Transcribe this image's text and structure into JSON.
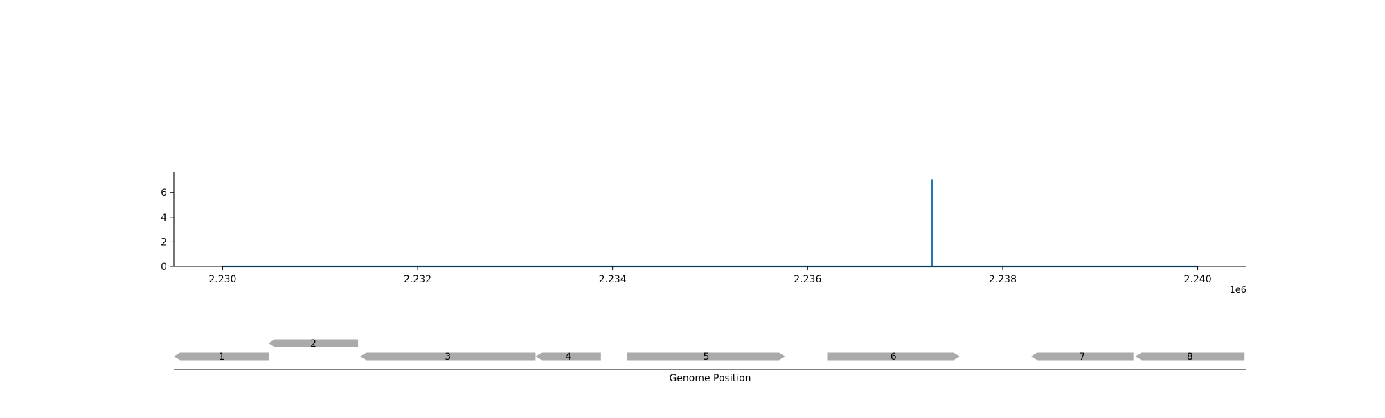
{
  "chart_data": [
    {
      "type": "line",
      "xlabel": "",
      "ylabel": "",
      "x_offset_label": "1e6",
      "xlim": [
        2229500,
        2240500
      ],
      "ylim": [
        0,
        7.7
      ],
      "xticks": [
        2230000,
        2232000,
        2234000,
        2236000,
        2238000,
        2240000
      ],
      "xtick_labels": [
        "2.230",
        "2.232",
        "2.234",
        "2.236",
        "2.238",
        "2.240"
      ],
      "yticks": [
        0,
        2,
        4,
        6
      ],
      "ytick_labels": [
        "0",
        "2",
        "4",
        "6"
      ],
      "grid": false,
      "series": [
        {
          "color": "#1f77b4",
          "x": [
            2230000,
            2237270,
            2237270,
            2237280,
            2237280,
            2240000
          ],
          "y": [
            0,
            0,
            7,
            7,
            0,
            0
          ]
        }
      ]
    },
    {
      "type": "gene_track",
      "xlabel": "Genome Position",
      "xlim": [
        2229500,
        2240500
      ],
      "feature_color": "#aaaaaa",
      "features": [
        {
          "label": "1",
          "start": 2229500,
          "end": 2230480,
          "strand": -1,
          "level": 0
        },
        {
          "label": "2",
          "start": 2230470,
          "end": 2231390,
          "strand": -1,
          "level": 1
        },
        {
          "label": "3",
          "start": 2231410,
          "end": 2233210,
          "strand": -1,
          "level": 0
        },
        {
          "label": "4",
          "start": 2233210,
          "end": 2233880,
          "strand": -1,
          "level": 0
        },
        {
          "label": "5",
          "start": 2234150,
          "end": 2235770,
          "strand": 1,
          "level": 0
        },
        {
          "label": "6",
          "start": 2236200,
          "end": 2237560,
          "strand": 1,
          "level": 0
        },
        {
          "label": "7",
          "start": 2238290,
          "end": 2239340,
          "strand": -1,
          "level": 0
        },
        {
          "label": "8",
          "start": 2239360,
          "end": 2240480,
          "strand": -1,
          "level": 0
        }
      ]
    }
  ]
}
